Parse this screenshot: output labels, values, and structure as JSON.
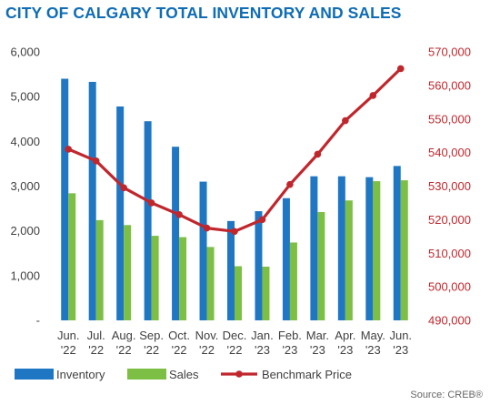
{
  "title": "CITY OF CALGARY TOTAL INVENTORY AND SALES",
  "source": "Source: CREB®",
  "colors": {
    "title": "#0f6cb5",
    "inventory": "#1f77c4",
    "sales": "#7dbf45",
    "benchmark": "#c0272d",
    "left_axis_text": "#404040",
    "right_axis_text": "#c0272d"
  },
  "chart_data": {
    "type": "bar",
    "categories": [
      [
        "Jun.",
        "'22"
      ],
      [
        "Jul.",
        "'22"
      ],
      [
        "Aug.",
        "'22"
      ],
      [
        "Sep.",
        "'22"
      ],
      [
        "Oct.",
        "'22"
      ],
      [
        "Nov.",
        "'22"
      ],
      [
        "Dec.",
        "'22"
      ],
      [
        "Jan.",
        "'23"
      ],
      [
        "Feb.",
        "'23"
      ],
      [
        "Mar.",
        "'23"
      ],
      [
        "Apr.",
        "'23"
      ],
      [
        "May.",
        "'23"
      ],
      [
        "Jun.",
        "'23"
      ]
    ],
    "series": [
      {
        "name": "Inventory",
        "type": "bar",
        "axis": "left",
        "values": [
          5400,
          5330,
          4780,
          4450,
          3880,
          3100,
          2220,
          2440,
          2730,
          3220,
          3220,
          3200,
          3450
        ]
      },
      {
        "name": "Sales",
        "type": "bar",
        "axis": "left",
        "values": [
          2840,
          2240,
          2130,
          1890,
          1860,
          1640,
          1210,
          1200,
          1740,
          2420,
          2680,
          3110,
          3130
        ]
      },
      {
        "name": "Benchmark Price",
        "type": "line",
        "axis": "right",
        "values": [
          541000,
          537500,
          529500,
          525000,
          521500,
          517500,
          516500,
          520000,
          530500,
          539500,
          549500,
          557000,
          565000
        ]
      }
    ],
    "left_axis": {
      "min": 0,
      "max": 6000,
      "ticks": [
        "-",
        "1,000",
        "2,000",
        "3,000",
        "4,000",
        "5,000",
        "6,000"
      ]
    },
    "right_axis": {
      "min": 490000,
      "max": 570000,
      "ticks": [
        "490,000",
        "500,000",
        "510,000",
        "520,000",
        "530,000",
        "540,000",
        "550,000",
        "560,000",
        "570,000"
      ]
    },
    "grid": false,
    "legend_position": "bottom-left"
  }
}
